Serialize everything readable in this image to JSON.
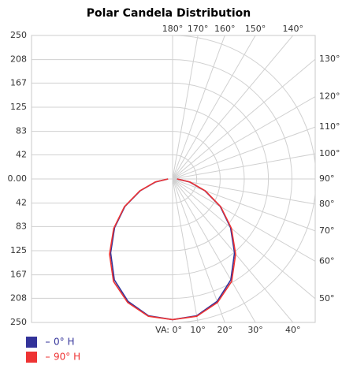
{
  "chart_data": {
    "type": "polar",
    "title": "Polar Candela Distribution",
    "rlim": [
      0,
      250
    ],
    "rticks": [
      {
        "value": 0,
        "label": "0.00"
      },
      42,
      83,
      125,
      167,
      208,
      250
    ],
    "angles": [
      0,
      10,
      20,
      30,
      40,
      50,
      60,
      70,
      80,
      90
    ],
    "angle_ticks": [
      {
        "value": 0,
        "label": "VA: 0°"
      },
      {
        "value": 10,
        "label": "10°"
      },
      {
        "value": 20,
        "label": "20°"
      },
      {
        "value": 30,
        "label": "30°"
      },
      {
        "value": 40,
        "label": "40°"
      },
      {
        "value": 50,
        "label": "50°"
      },
      {
        "value": 60,
        "label": "60°"
      },
      {
        "value": 70,
        "label": "70°"
      },
      {
        "value": 80,
        "label": "80°"
      },
      {
        "value": 90,
        "label": "90°"
      },
      {
        "value": 100,
        "label": "100°"
      },
      {
        "value": 110,
        "label": "110°"
      },
      {
        "value": 120,
        "label": "120°"
      },
      {
        "value": 130,
        "label": "130°"
      },
      {
        "value": 140,
        "label": "140°"
      },
      {
        "value": 150,
        "label": "150°"
      },
      {
        "value": 160,
        "label": "160°"
      },
      {
        "value": 170,
        "label": "170°"
      },
      {
        "value": 180,
        "label": "180°"
      }
    ],
    "series": [
      {
        "name": "0° H",
        "color": "#33339a",
        "values": [
          245,
          242,
          227,
          203,
          168,
          132,
          96,
          60,
          30,
          8
        ]
      },
      {
        "name": "90° H",
        "color": "#ee3333",
        "values": [
          245,
          243,
          229,
          206,
          171,
          134,
          97,
          61,
          31,
          8
        ]
      }
    ],
    "grid": true
  }
}
